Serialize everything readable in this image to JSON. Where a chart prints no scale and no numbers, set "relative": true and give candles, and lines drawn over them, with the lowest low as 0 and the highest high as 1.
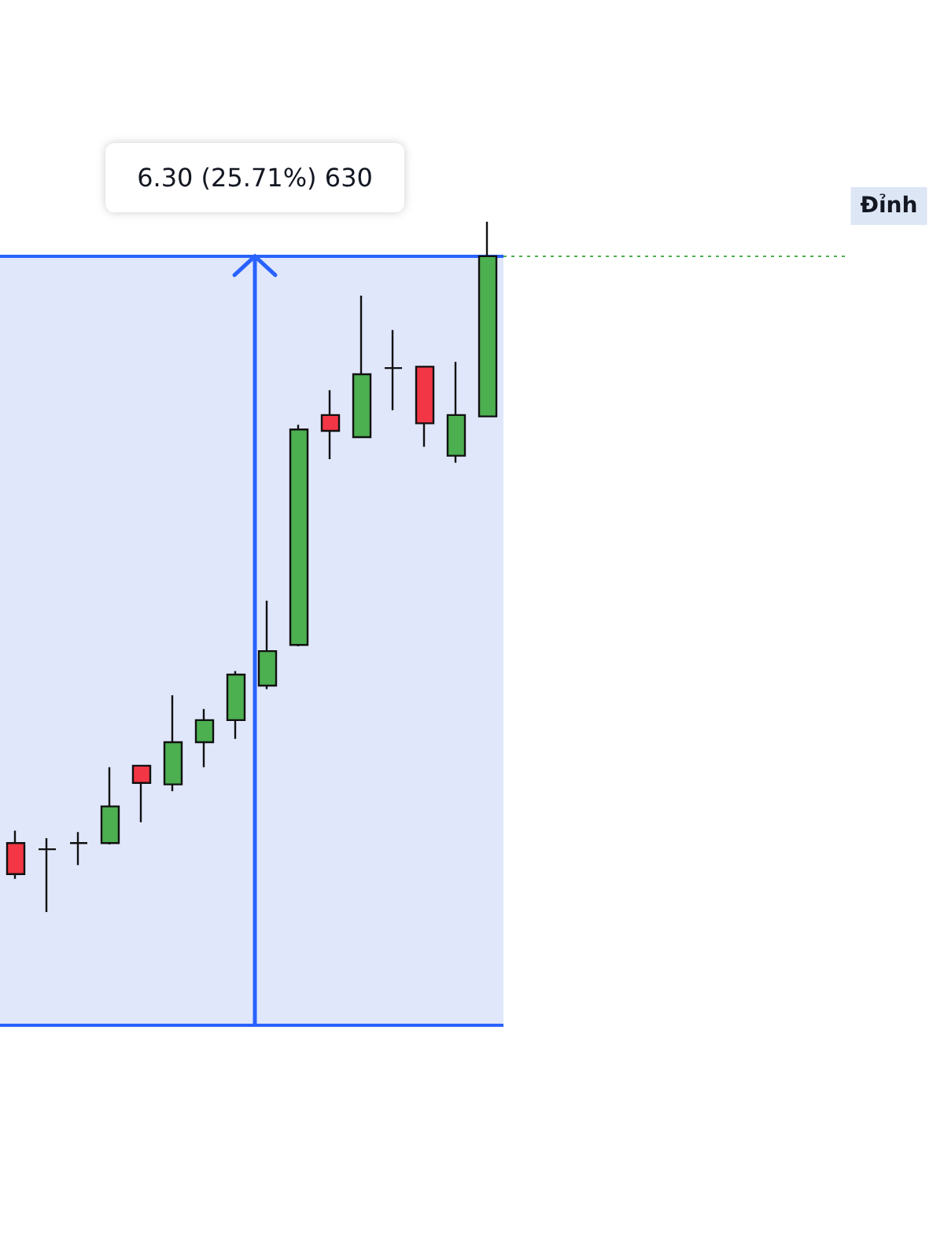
{
  "chart_data": {
    "type": "candlestick",
    "relative": true,
    "grid": false,
    "categories": [
      null,
      null,
      null,
      null,
      null,
      null,
      null,
      null,
      null,
      null,
      null,
      null,
      null,
      null,
      null,
      null
    ],
    "ohlc": [
      [
        0.1,
        0.118,
        0.048,
        0.055
      ],
      [
        0.091,
        0.107,
        0.0,
        0.091
      ],
      [
        0.1,
        0.116,
        0.068,
        0.1
      ],
      [
        0.1,
        0.21,
        0.098,
        0.153
      ],
      [
        0.212,
        0.212,
        0.13,
        0.187
      ],
      [
        0.185,
        0.314,
        0.175,
        0.246
      ],
      [
        0.246,
        0.294,
        0.21,
        0.278
      ],
      [
        0.278,
        0.349,
        0.251,
        0.344
      ],
      [
        0.328,
        0.451,
        0.323,
        0.378
      ],
      [
        0.387,
        0.706,
        0.385,
        0.699
      ],
      [
        0.72,
        0.756,
        0.656,
        0.697
      ],
      [
        0.688,
        0.893,
        0.688,
        0.779
      ],
      [
        0.788,
        0.843,
        0.727,
        0.788
      ],
      [
        0.79,
        0.79,
        0.674,
        0.708
      ],
      [
        0.661,
        0.797,
        0.651,
        0.72
      ],
      [
        0.718,
        1.0,
        0.718,
        0.95
      ]
    ],
    "colors": [
      "#f23645",
      "#111111",
      "#111111",
      "#4caf50",
      "#f23645",
      "#4caf50",
      "#4caf50",
      "#4caf50",
      "#4caf50",
      "#4caf50",
      "#f23645",
      "#4caf50",
      "#111111",
      "#f23645",
      "#4caf50",
      "#4caf50"
    ],
    "bands": [
      {
        "axis": "y",
        "from": -0.164,
        "to": 0.95,
        "color": "#e0e7fb"
      }
    ],
    "ref_lines": [
      {
        "axis": "y",
        "value": 0.95,
        "label": "Đỉnh",
        "color": "#4caf50",
        "line_style": "dotted"
      },
      {
        "axis": "y",
        "value": 0.95,
        "color": "#2962ff",
        "line_style": "solid"
      },
      {
        "axis": "y",
        "value": -0.164,
        "color": "#2962ff",
        "line_style": "solid"
      }
    ],
    "annotations": [
      "6.30 (25.71%) 630"
    ]
  }
}
